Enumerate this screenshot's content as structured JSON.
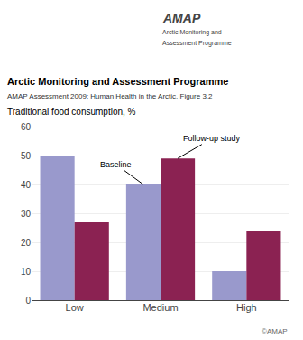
{
  "chart_data": {
    "type": "bar",
    "title": "Arctic Monitoring and Assessment Programme",
    "subtitle": "AMAP Assessment 2009: Human Health in the Arctic, Figure 3.2",
    "ylabel": "Traditional food consumption, %",
    "logo": [
      "AMAP",
      "Arctic Monitoring and",
      "Assessment Programme"
    ],
    "copyright": "©AMAP",
    "categories": [
      "Low",
      "Medium",
      "High"
    ],
    "series": [
      {
        "name": "Baseline",
        "color": "#9999cc",
        "values": [
          50,
          40,
          10
        ]
      },
      {
        "name": "Follow-up study",
        "color": "#8b2252",
        "values": [
          27,
          49,
          24
        ]
      }
    ],
    "annotations": [
      {
        "text": "Baseline",
        "x": "Medium",
        "y": 40
      },
      {
        "text": "Follow-up study",
        "x": "Medium",
        "y": 49
      }
    ],
    "ylim": [
      0,
      60
    ],
    "yticks": [
      0,
      10,
      20,
      30,
      40,
      50,
      60
    ],
    "grid": true
  }
}
